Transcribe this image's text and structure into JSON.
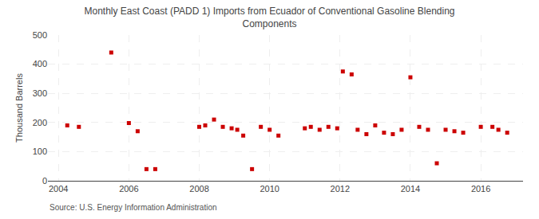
{
  "chart_data": {
    "type": "scatter",
    "title": "Monthly East Coast (PADD 1) Imports from Ecuador of Conventional Gasoline Blending\nComponents",
    "ylabel": "Thousand Barrels",
    "annotations": [
      "Source: U.S. Energy Information Administration"
    ],
    "color": "#cc0000",
    "marker": "square",
    "grid": true,
    "xlim": [
      2003.7,
      2017.2
    ],
    "xticks": [
      2004,
      2006,
      2008,
      2010,
      2012,
      2014,
      2016
    ],
    "ylim": [
      0,
      500
    ],
    "yticks": [
      0,
      100,
      200,
      300,
      400,
      500
    ],
    "x": [
      2004.25,
      2004.58,
      2005.5,
      2006.0,
      2006.25,
      2006.5,
      2006.75,
      2008.0,
      2008.17,
      2008.42,
      2008.67,
      2008.92,
      2009.08,
      2009.25,
      2009.5,
      2009.75,
      2010.0,
      2010.25,
      2011.0,
      2011.17,
      2011.42,
      2011.67,
      2011.92,
      2012.08,
      2012.33,
      2012.5,
      2012.75,
      2013.0,
      2013.25,
      2013.5,
      2013.75,
      2014.0,
      2014.25,
      2014.5,
      2014.75,
      2015.0,
      2015.25,
      2015.5,
      2016.0,
      2016.33,
      2016.5,
      2016.75
    ],
    "values": [
      190,
      185,
      440,
      198,
      170,
      40,
      40,
      185,
      190,
      210,
      185,
      180,
      175,
      155,
      40,
      185,
      175,
      155,
      180,
      185,
      175,
      185,
      180,
      375,
      365,
      175,
      160,
      190,
      165,
      160,
      175,
      355,
      185,
      175,
      60,
      175,
      170,
      165,
      185,
      185,
      175,
      165
    ]
  }
}
